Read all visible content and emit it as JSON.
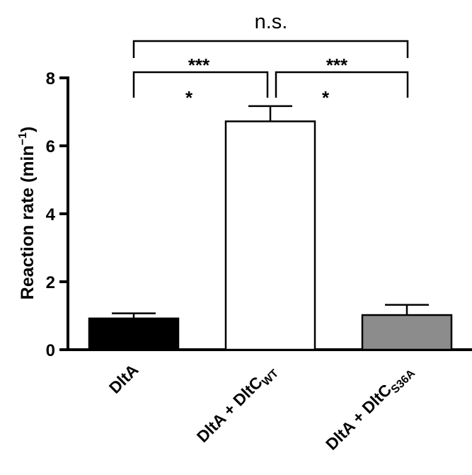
{
  "chart_data": {
    "type": "bar",
    "categories": [
      {
        "main": "DltA",
        "sub": ""
      },
      {
        "main": "DltA + DltC",
        "sub": "WT"
      },
      {
        "main": "DltA + DltC",
        "sub": "S36A"
      }
    ],
    "values": [
      0.92,
      6.72,
      1.02
    ],
    "errors": [
      0.15,
      0.45,
      0.3
    ],
    "colors": [
      "#000000",
      "#ffffff",
      "#8c8c8c"
    ],
    "ylabel": {
      "main": "Reaction rate  (min",
      "sup": "−1",
      "tail": ")"
    },
    "ylim": [
      0,
      8
    ],
    "yticks": [
      "0",
      "2",
      "4",
      "6",
      "8"
    ],
    "xlabel": "",
    "title": "",
    "grid": false,
    "significance": [
      {
        "label": "n.s.",
        "pair": [
          0,
          2
        ]
      },
      {
        "label": "***",
        "pair": [
          0,
          1
        ]
      },
      {
        "label": "***",
        "pair": [
          1,
          2
        ]
      },
      {
        "label": "*",
        "pair": [
          0,
          1
        ]
      },
      {
        "label": "*",
        "pair": [
          1,
          2
        ]
      }
    ]
  }
}
